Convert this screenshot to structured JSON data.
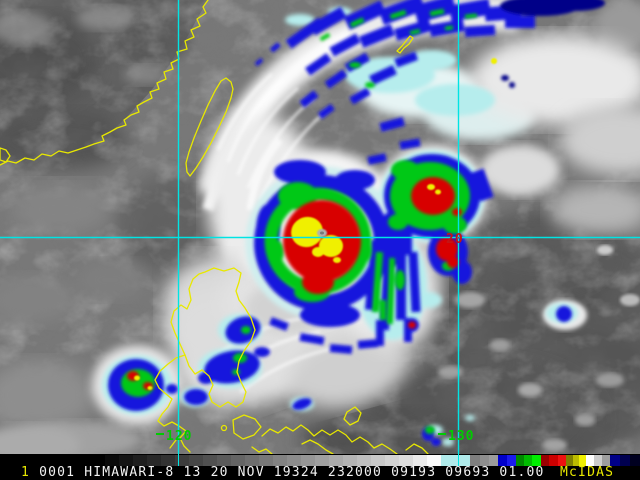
{
  "palette": {
    "base-gray": "#787878",
    "land-dark": "#5e5e5e",
    "ocean-dark": "#565656",
    "cloud-white": "#f2f2f2",
    "fringe-cyan": "#b6eded",
    "enh-blue": "#1414dd",
    "enh-navy": "#000088",
    "enh-green": "#00c818",
    "enh-red": "#d80000",
    "enh-yellow": "#f0f000",
    "coast-yellow": "#e8e800",
    "grid-cyan": "#00e4e4",
    "label-green": "#00cc00",
    "label-red": "#c41414",
    "bar-bg": "#000000",
    "text-white": "#f2f2f2",
    "text-yellow": "#e8e800"
  },
  "grid": {
    "lon_west": "120",
    "lon_east": "130",
    "lat": "20"
  },
  "status_bar": {
    "frame": "1",
    "annotation": "0001 HIMAWARI-8 13 20 NOV 19324 232000 09193 09693 01.00",
    "brand": "McIDAS"
  },
  "colorbar": {
    "segments": [
      {
        "c": "#0a0a0a",
        "w": 14
      },
      {
        "c": "#141414",
        "w": 14
      },
      {
        "c": "#1e1e1e",
        "w": 14
      },
      {
        "c": "#282828",
        "w": 14
      },
      {
        "c": "#323232",
        "w": 14
      },
      {
        "c": "#3c3c3c",
        "w": 14
      },
      {
        "c": "#464646",
        "w": 14
      },
      {
        "c": "#505050",
        "w": 14
      },
      {
        "c": "#5a5a5a",
        "w": 14
      },
      {
        "c": "#646464",
        "w": 14
      },
      {
        "c": "#6e6e6e",
        "w": 14
      },
      {
        "c": "#787878",
        "w": 14
      },
      {
        "c": "#828282",
        "w": 14
      },
      {
        "c": "#8c8c8c",
        "w": 14
      },
      {
        "c": "#969696",
        "w": 14
      },
      {
        "c": "#a0a0a0",
        "w": 14
      },
      {
        "c": "#aaaaaa",
        "w": 14
      },
      {
        "c": "#b4b4b4",
        "w": 14
      },
      {
        "c": "#bebebe",
        "w": 14
      },
      {
        "c": "#c8c8c8",
        "w": 14
      },
      {
        "c": "#d2d2d2",
        "w": 14
      },
      {
        "c": "#dcdcdc",
        "w": 14
      },
      {
        "c": "#eaeaea",
        "w": 14
      },
      {
        "c": "#fafafa",
        "w": 14
      },
      {
        "c": "#b0eaea",
        "w": 29
      },
      {
        "c": "#7e7e7e",
        "w": 10
      },
      {
        "c": "#8e8e8e",
        "w": 9
      },
      {
        "c": "#9c9c9c",
        "w": 9
      },
      {
        "c": "#0000cc",
        "w": 9
      },
      {
        "c": "#1a1aee",
        "w": 9
      },
      {
        "c": "#008800",
        "w": 8
      },
      {
        "c": "#00bb00",
        "w": 8
      },
      {
        "c": "#00ee00",
        "w": 9
      },
      {
        "c": "#990000",
        "w": 8
      },
      {
        "c": "#cc0000",
        "w": 9
      },
      {
        "c": "#ee1111",
        "w": 8
      },
      {
        "c": "#808000",
        "w": 7
      },
      {
        "c": "#bcbc00",
        "w": 6
      },
      {
        "c": "#f0f000",
        "w": 7
      },
      {
        "c": "#ffffff",
        "w": 8
      },
      {
        "c": "#cccccc",
        "w": 8
      },
      {
        "c": "#9e9e9e",
        "w": 8
      },
      {
        "c": "#000088",
        "w": 10
      },
      {
        "c": "#000050",
        "w": 10
      },
      {
        "c": "#000020",
        "w": 10
      }
    ]
  }
}
